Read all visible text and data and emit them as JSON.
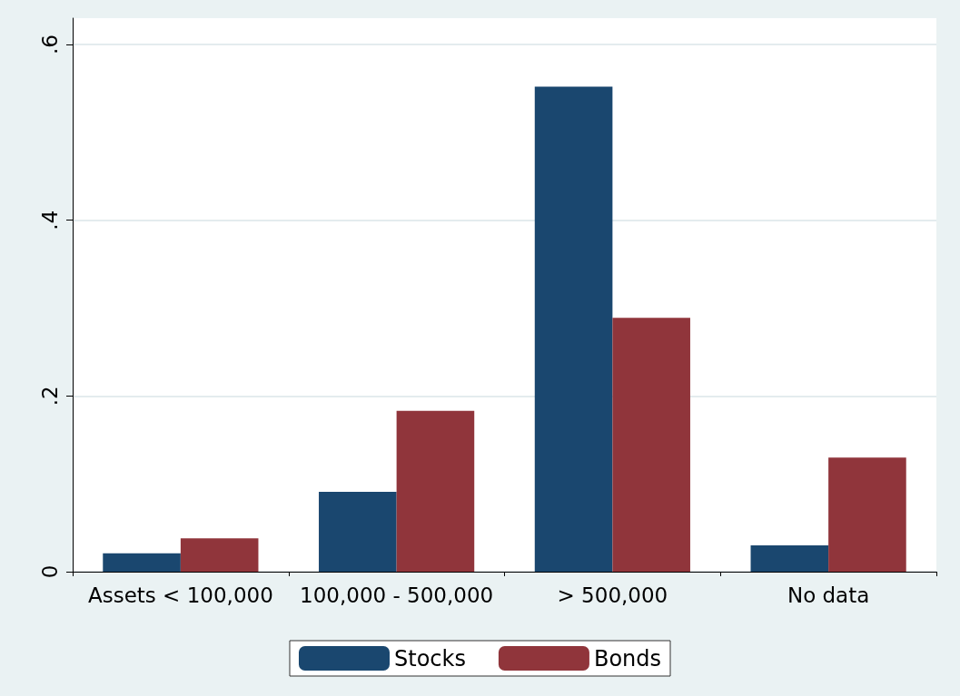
{
  "chart_data": {
    "type": "bar",
    "categories": [
      "Assets < 100,000",
      "100,000 - 500,000",
      "> 500,000",
      "No data"
    ],
    "series": [
      {
        "name": "Stocks",
        "color": "#1a476f",
        "values": [
          0.021,
          0.091,
          0.552,
          0.03
        ]
      },
      {
        "name": "Bonds",
        "color": "#90353b",
        "values": [
          0.038,
          0.183,
          0.289,
          0.13
        ]
      }
    ],
    "ylim": [
      0,
      0.63
    ],
    "yticks": [
      0,
      {
        "value": 0.2,
        "label": ".2"
      },
      {
        "value": 0.4,
        "label": ".4"
      },
      {
        "value": 0.6,
        "label": ".6"
      }
    ],
    "grid": "y",
    "legend": "bottom"
  }
}
